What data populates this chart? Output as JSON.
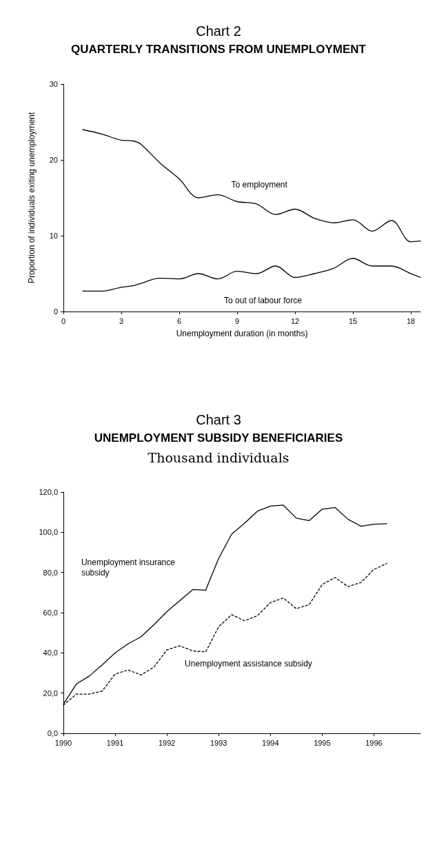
{
  "chart_data": [
    {
      "type": "line",
      "title": "Chart 2",
      "subtitle": "QUARTERLY TRANSITIONS FROM UNEMPLOYMENT",
      "xlabel": "Unemployment duration (in months)",
      "ylabel": "Proportion of individuals exiting unemployment",
      "x": [
        1,
        2,
        3,
        3.6,
        4,
        5,
        6,
        7,
        8,
        9,
        10,
        11,
        12,
        13,
        14,
        15,
        16,
        17,
        18,
        18.5
      ],
      "series": [
        {
          "name": "To employment",
          "color": "#000000",
          "values": [
            24,
            23.4,
            22.6,
            22.5,
            22.1,
            19.6,
            17.5,
            15.0,
            15.4,
            14.5,
            14.2,
            12.8,
            13.5,
            12.3,
            11.7,
            12.1,
            10.6,
            12.0,
            9.2,
            9.3
          ]
        },
        {
          "name": "To out of labour force",
          "color": "#000000",
          "values": [
            2.7,
            2.7,
            3.2,
            3.4,
            3.7,
            4.4,
            4.3,
            5.0,
            4.3,
            5.3,
            5.0,
            6.0,
            4.5,
            5.0,
            5.7,
            7.0,
            6.0,
            6.0,
            5.0,
            4.5
          ]
        }
      ],
      "xlim": [
        0,
        18.5
      ],
      "xticks": [
        0,
        3,
        6,
        9,
        12,
        15,
        18
      ],
      "ylim": [
        0,
        30
      ],
      "yticks": [
        0,
        10,
        20,
        30
      ],
      "grid": false,
      "legend": false,
      "marker": "none",
      "line_style": "solid"
    },
    {
      "type": "line",
      "title": "Chart 3",
      "subtitle": "UNEMPLOYMENT SUBSIDY BENEFICIARIES",
      "annotations": [
        "Thousand individuals"
      ],
      "x": [
        1990,
        1990.25,
        1990.5,
        1990.75,
        1991,
        1991.25,
        1991.5,
        1991.75,
        1992,
        1992.25,
        1992.5,
        1992.75,
        1993,
        1993.25,
        1993.5,
        1993.75,
        1994,
        1994.25,
        1994.5,
        1994.75,
        1995,
        1995.25,
        1995.5,
        1995.75,
        1996,
        1996.25
      ],
      "series": [
        {
          "name": "Unemployment insurance subsidy",
          "color": "#000000",
          "line_style": "solid",
          "values": [
            14.5,
            24.5,
            28.5,
            34,
            40,
            44.5,
            48,
            54,
            60.5,
            66,
            71.5,
            71.2,
            87,
            99,
            104.5,
            110.5,
            113,
            113.5,
            107,
            105.8,
            111.5,
            112.3,
            106.5,
            103,
            104,
            104.3
          ]
        },
        {
          "name": "Unemployment assistance subsidy",
          "color": "#000000",
          "line_style": "dashed",
          "values": [
            14,
            19.5,
            19.5,
            21,
            29.5,
            31.5,
            29,
            33,
            41.5,
            43.5,
            41,
            40.5,
            53,
            59,
            56,
            58.5,
            65,
            67.3,
            62,
            64,
            74,
            77.5,
            73,
            75,
            81.5,
            84.5
          ]
        }
      ],
      "xlim": [
        1990,
        1996.9
      ],
      "xticks": [
        1990,
        1991,
        1992,
        1993,
        1994,
        1995,
        1996
      ],
      "ylim": [
        0,
        120
      ],
      "yticks": [
        {
          "value": 0,
          "label": "0,0"
        },
        {
          "value": 20,
          "label": "20,0"
        },
        {
          "value": 40,
          "label": "40,0"
        },
        {
          "value": 60,
          "label": "60,0"
        },
        {
          "value": 80,
          "label": "80,0"
        },
        {
          "value": 100,
          "label": "100,0"
        },
        {
          "value": 120,
          "label": "120,0"
        }
      ],
      "grid": false,
      "legend": false,
      "marker": "none"
    }
  ]
}
